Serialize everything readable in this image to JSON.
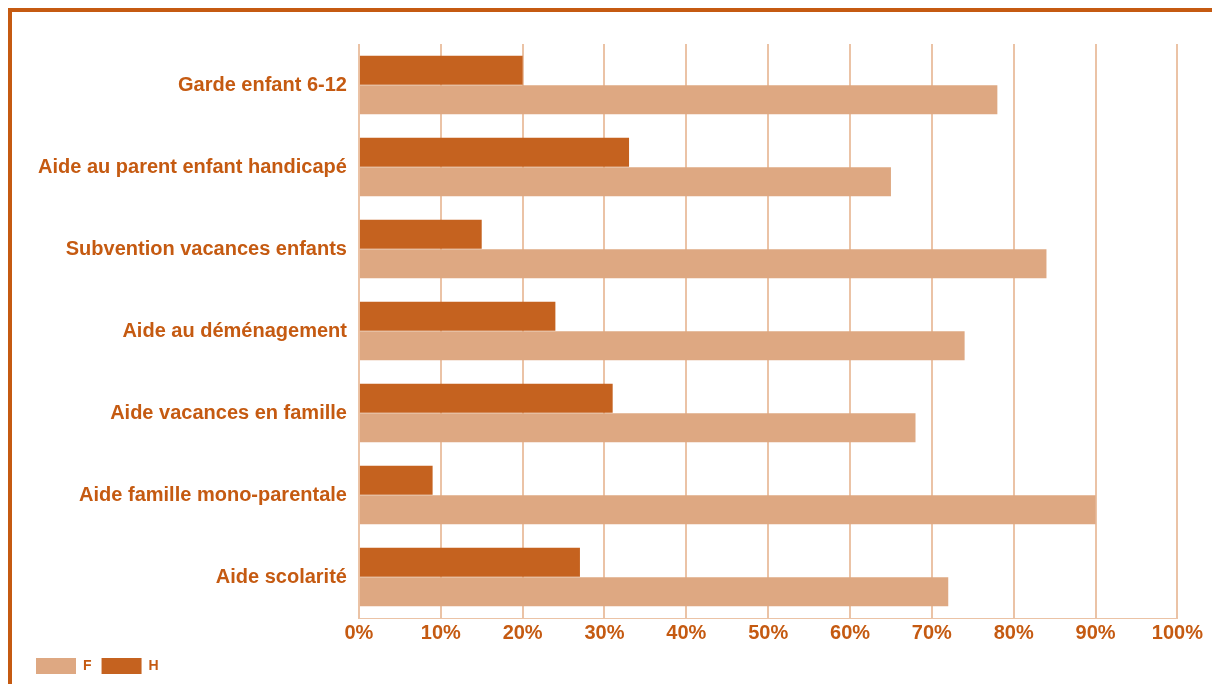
{
  "chart_data": {
    "type": "bar",
    "orientation": "horizontal",
    "categories": [
      "Garde enfant 6-12",
      "Aide au parent enfant handicapé",
      "Subvention vacances enfants",
      "Aide au déménagement",
      "Aide vacances en famille",
      "Aide famille mono-parentale",
      "Aide scolarité"
    ],
    "series": [
      {
        "name": "H",
        "color": "#c5621f",
        "values": [
          20,
          33,
          15,
          24,
          31,
          9,
          27
        ]
      },
      {
        "name": "F",
        "color": "#dea882",
        "values": [
          78,
          65,
          84,
          74,
          68,
          90,
          72
        ]
      }
    ],
    "xlim": [
      0,
      100
    ],
    "xticks": [
      {
        "value": 0,
        "label": "0%"
      },
      {
        "value": 10,
        "label": "10%"
      },
      {
        "value": 20,
        "label": "20%"
      },
      {
        "value": 30,
        "label": "30%"
      },
      {
        "value": 40,
        "label": "40%"
      },
      {
        "value": 50,
        "label": "50%"
      },
      {
        "value": 60,
        "label": "60%"
      },
      {
        "value": 70,
        "label": "70%"
      },
      {
        "value": 80,
        "label": "80%"
      },
      {
        "value": 90,
        "label": "90%"
      },
      {
        "value": 100,
        "label": "100%"
      }
    ],
    "grid": "x",
    "legend": "bottom left"
  }
}
